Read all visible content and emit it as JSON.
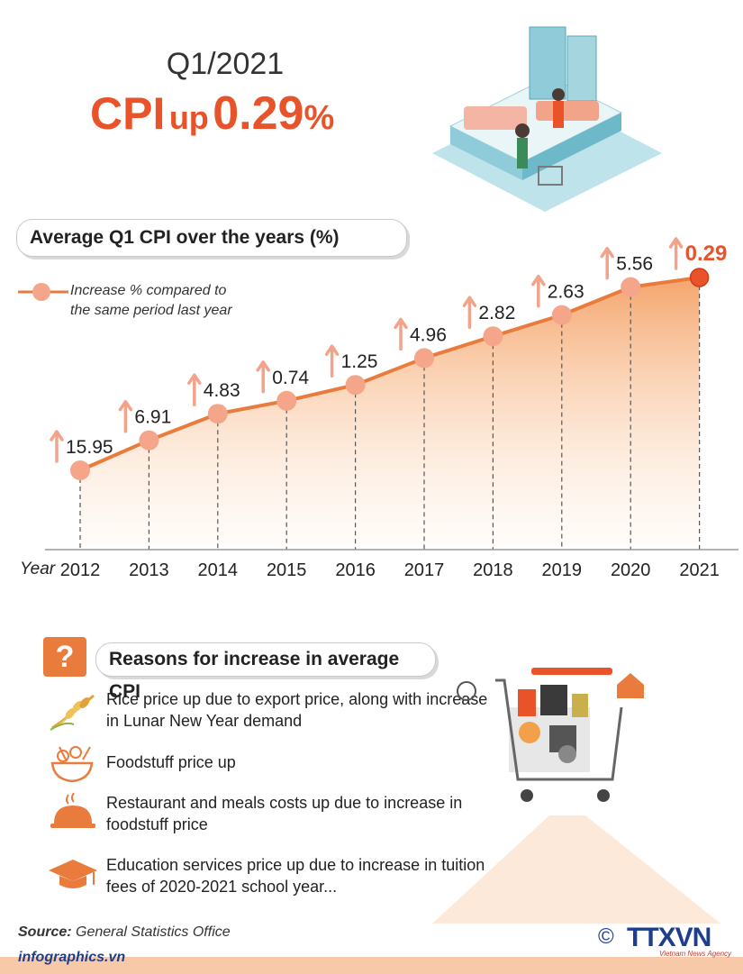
{
  "header": {
    "period": "Q1/2021",
    "cpi": "CPI",
    "up": "up",
    "value": "0.29",
    "percent_sign": "%"
  },
  "chart_title": "Average Q1 CPI over the years (%)",
  "legend_label": "Increase % compared to the same period last year",
  "x_axis_label": "Year",
  "chart_data": {
    "type": "area",
    "title": "Average Q1 CPI over the years (%)",
    "xlabel": "Year",
    "ylabel": "",
    "categories": [
      "2012",
      "2013",
      "2014",
      "2015",
      "2016",
      "2017",
      "2018",
      "2019",
      "2020",
      "2021"
    ],
    "series": [
      {
        "name": "Increase % compared to the same period last year",
        "values": [
          15.95,
          6.91,
          4.83,
          0.74,
          1.25,
          4.96,
          2.82,
          2.63,
          5.56,
          0.29
        ],
        "labels": [
          "15.95",
          "6.91",
          "4.83",
          "0.74",
          "1.25",
          "4.96",
          "2.82",
          "2.63",
          "5.56",
          "0.29"
        ]
      }
    ],
    "direction": [
      "up",
      "up",
      "up",
      "up",
      "up",
      "up",
      "up",
      "up",
      "up",
      "up"
    ],
    "highlight": "2021"
  },
  "reasons": {
    "title": "Reasons for increase in average CPI",
    "question_mark": "?",
    "items": [
      {
        "icon": "rice-icon",
        "line1": "Rice price up due to export price, along with increase",
        "line2": "in Lunar New Year demand"
      },
      {
        "icon": "foodstuff-icon",
        "line1": "Foodstuff price up",
        "line2": ""
      },
      {
        "icon": "restaurant-cloche-icon",
        "line1": "Restaurant and meals costs up due to increase in",
        "line2": "foodstuff price"
      },
      {
        "icon": "graduation-cap-icon",
        "line1": "Education services price up due to increase in tuition",
        "line2": "fees of 2020-2021 school year..."
      }
    ]
  },
  "footer": {
    "source_label": "Source:",
    "source_value": "General Statistics Office",
    "brand": "infographics.vn",
    "copyright": "©",
    "agency": "TTXVN",
    "agency_sub": "Vietnam News Agency"
  },
  "colors": {
    "accent": "#e8532a",
    "line": "#e97b3c",
    "marker": "#f4a58a",
    "arrow": "#f2a48b",
    "highlight_marker": "#e8532a",
    "brand_blue": "#1d3e8f"
  }
}
